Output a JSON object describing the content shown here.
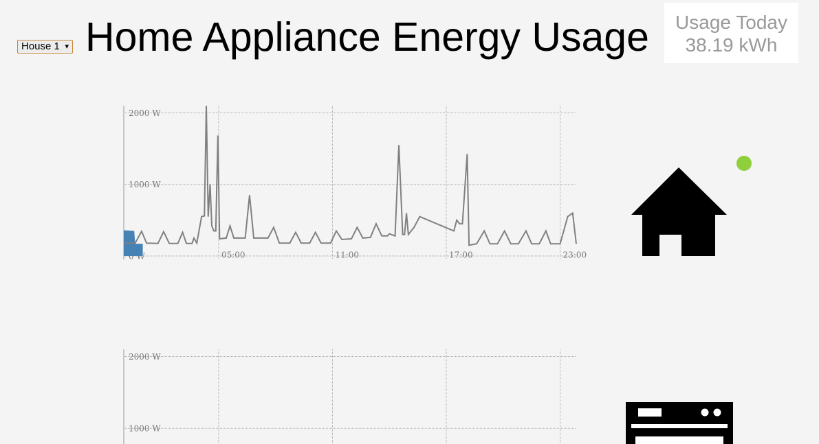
{
  "header": {
    "house_select": "House 1",
    "title": "Home Appliance Energy Usage",
    "usage_label": "Usage Today",
    "usage_value": "38.19 kWh"
  },
  "chart_data": [
    {
      "type": "line",
      "xlim": [
        0,
        23.85
      ],
      "ylim": [
        0,
        2100
      ],
      "xticks": [
        {
          "value": 5,
          "label": "05:00"
        },
        {
          "value": 11,
          "label": "11:00"
        },
        {
          "value": 17,
          "label": "17:00"
        },
        {
          "value": 23,
          "label": "23:00"
        }
      ],
      "yticks": [
        {
          "value": 0,
          "label": "0 W"
        },
        {
          "value": 1000,
          "label": "1000 W"
        },
        {
          "value": 2000,
          "label": "2000 W"
        }
      ],
      "grid": true,
      "series": [
        {
          "style": "area",
          "color": "#4682b4",
          "x": [
            0,
            0.55,
            0.6,
            1.0
          ],
          "values": [
            360,
            350,
            170,
            170
          ]
        },
        {
          "style": "line",
          "color": "#808080",
          "x": [
            0.05,
            0.6,
            0.94,
            1.2,
            1.8,
            2.1,
            2.4,
            2.85,
            3.1,
            3.3,
            3.6,
            3.7,
            3.85,
            4.1,
            4.25,
            4.35,
            4.45,
            4.55,
            4.64,
            4.75,
            4.85,
            4.96,
            5.05,
            5.4,
            5.6,
            5.8,
            6.4,
            6.63,
            6.85,
            7.6,
            7.9,
            8.2,
            8.75,
            9.06,
            9.35,
            9.8,
            10.1,
            10.4,
            10.9,
            11.2,
            11.5,
            12.0,
            12.3,
            12.6,
            13.0,
            13.3,
            13.6,
            13.9,
            14.0,
            14.3,
            14.5,
            14.7,
            14.8,
            14.9,
            15.0,
            15.3,
            15.6,
            17.4,
            17.55,
            17.7,
            17.85,
            18.1,
            18.2,
            18.6,
            19.0,
            19.3,
            19.7,
            20.07,
            20.4,
            20.8,
            21.2,
            21.5,
            21.9,
            22.25,
            22.5,
            23.0,
            23.4,
            23.66,
            23.85
          ],
          "values": [
            180,
            180,
            345,
            180,
            175,
            340,
            175,
            175,
            330,
            175,
            175,
            250,
            180,
            550,
            560,
            2100,
            550,
            1000,
            420,
            350,
            350,
            1684,
            240,
            250,
            420,
            250,
            250,
            850,
            250,
            250,
            400,
            180,
            180,
            330,
            180,
            180,
            330,
            180,
            180,
            350,
            230,
            240,
            400,
            250,
            260,
            450,
            280,
            280,
            310,
            280,
            1550,
            300,
            300,
            600,
            300,
            400,
            550,
            350,
            500,
            450,
            450,
            1425,
            150,
            170,
            350,
            170,
            170,
            350,
            170,
            170,
            350,
            170,
            170,
            350,
            170,
            170,
            550,
            600,
            170
          ]
        }
      ]
    },
    {
      "type": "line",
      "xlim": [
        0,
        23.85
      ],
      "ylim": [
        0,
        2100
      ],
      "xticks": [
        5,
        11,
        17,
        23
      ],
      "yticks": [
        {
          "value": 1000,
          "label": "1000 W"
        },
        {
          "value": 2000,
          "label": "2000 W"
        }
      ],
      "grid": true,
      "series": []
    }
  ]
}
